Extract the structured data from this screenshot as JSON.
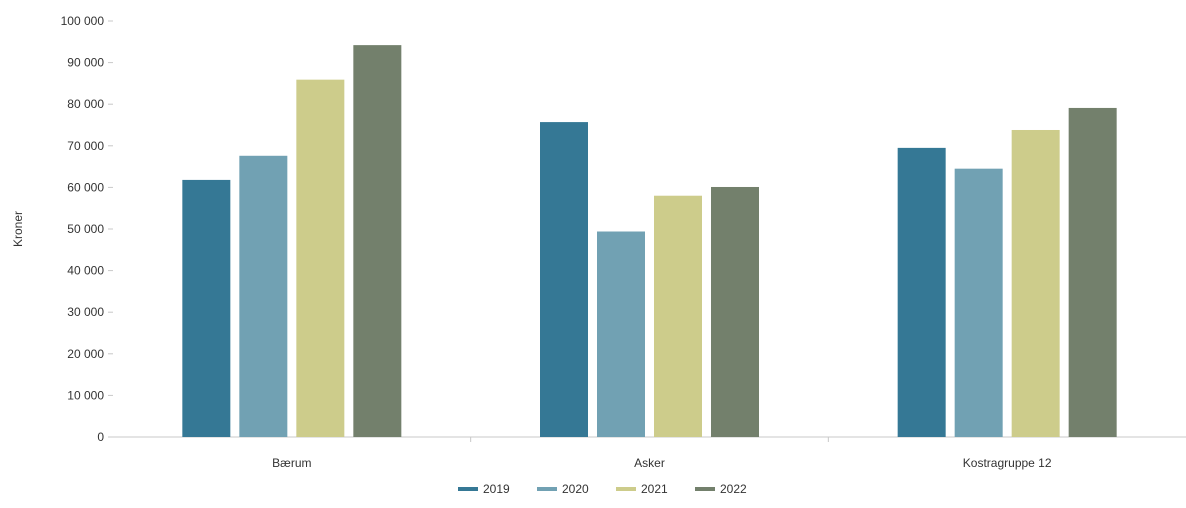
{
  "colors": {
    "2019": "#357895",
    "2020": "#71a1b3",
    "2021": "#cdcc8b",
    "2022": "#73806c",
    "axis": "#c8c8c8",
    "text": "#333333"
  },
  "chart_data": {
    "type": "bar",
    "ylabel": "Kroner",
    "ylim": [
      0,
      100000
    ],
    "yticks": [
      "0",
      "10 000",
      "20 000",
      "30 000",
      "40 000",
      "50 000",
      "60 000",
      "70 000",
      "80 000",
      "90 000",
      "100 000"
    ],
    "yticks_values": [
      0,
      10000,
      20000,
      30000,
      40000,
      50000,
      60000,
      70000,
      80000,
      90000,
      100000
    ],
    "grid": false,
    "legend_position": "bottom-center",
    "categories": [
      "Bærum",
      "Asker",
      "Kostragruppe 12"
    ],
    "series": [
      {
        "name": "2019",
        "color_key": "2019",
        "values": [
          61800,
          75700,
          69500
        ]
      },
      {
        "name": "2020",
        "color_key": "2020",
        "values": [
          67600,
          49400,
          64500
        ]
      },
      {
        "name": "2021",
        "color_key": "2021",
        "values": [
          85900,
          58000,
          73800
        ]
      },
      {
        "name": "2022",
        "color_key": "2022",
        "values": [
          94200,
          60100,
          79100
        ]
      }
    ]
  }
}
